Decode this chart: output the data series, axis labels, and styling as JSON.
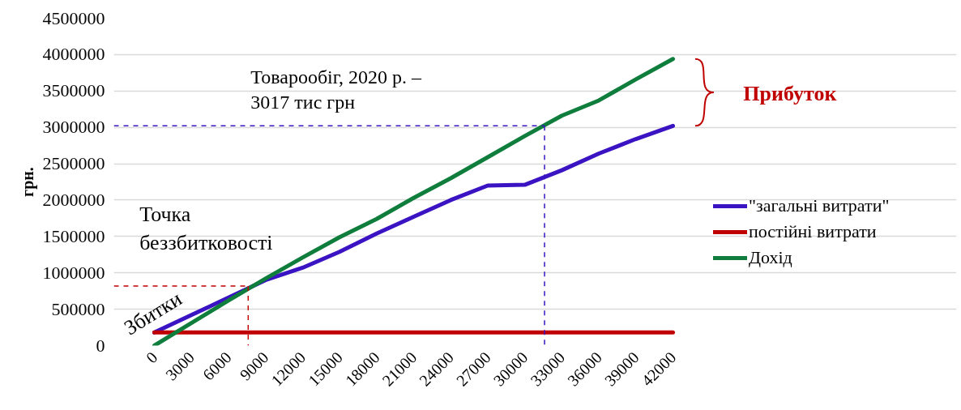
{
  "chart_data": {
    "type": "line",
    "x": [
      0,
      3000,
      6000,
      9000,
      12000,
      15000,
      18000,
      21000,
      24000,
      27000,
      30000,
      33000,
      36000,
      39000,
      42000
    ],
    "xlim": [
      0,
      42000
    ],
    "xticks": [
      0,
      3000,
      6000,
      9000,
      12000,
      15000,
      18000,
      21000,
      24000,
      27000,
      30000,
      33000,
      36000,
      39000,
      42000
    ],
    "series": [
      {
        "name": "\"загальні витрати\"",
        "color": "#3a13c3",
        "values": [
          180000,
          420000,
          660000,
          900000,
          1070000,
          1290000,
          1540000,
          1770000,
          2000000,
          2200000,
          2210000,
          2410000,
          2640000,
          2840000,
          3020000
        ]
      },
      {
        "name": "постійні витрати",
        "color": "#c00000",
        "values": [
          180000,
          180000,
          180000,
          180000,
          180000,
          180000,
          180000,
          180000,
          180000,
          180000,
          180000,
          180000,
          180000,
          180000,
          180000
        ]
      },
      {
        "name": "Дохід",
        "color": "#0f7d3c",
        "values": [
          0,
          310000,
          620000,
          920000,
          1210000,
          1490000,
          1740000,
          2030000,
          2300000,
          2590000,
          2880000,
          3160000,
          3370000,
          3660000,
          3940000
        ]
      }
    ],
    "ylabel": "грн.",
    "ylim": [
      0,
      4500000
    ],
    "yticks": [
      0,
      500000,
      1000000,
      1500000,
      2000000,
      2500000,
      3000000,
      3500000,
      4000000,
      4500000
    ],
    "grid": "y",
    "legend": "right",
    "marker": "none",
    "line_style": "solid",
    "ref_lines": [
      {
        "axis": "y",
        "value": 820000,
        "color": "#c00000",
        "line_style": "dashed"
      },
      {
        "axis": "x",
        "value": 7600,
        "color": "#c00000",
        "line_style": "dashed"
      },
      {
        "axis": "y",
        "value": 3020000,
        "color": "#3a13c3",
        "line_style": "dashed"
      },
      {
        "axis": "x",
        "value": 31600,
        "color": "#3a13c3",
        "line_style": "dashed"
      }
    ],
    "annotations": [
      "Товарообіг, 2020 р. –\n3017 тис грн",
      "Точка\nбеззбитковості",
      "Збитки",
      "Прибуток"
    ]
  }
}
